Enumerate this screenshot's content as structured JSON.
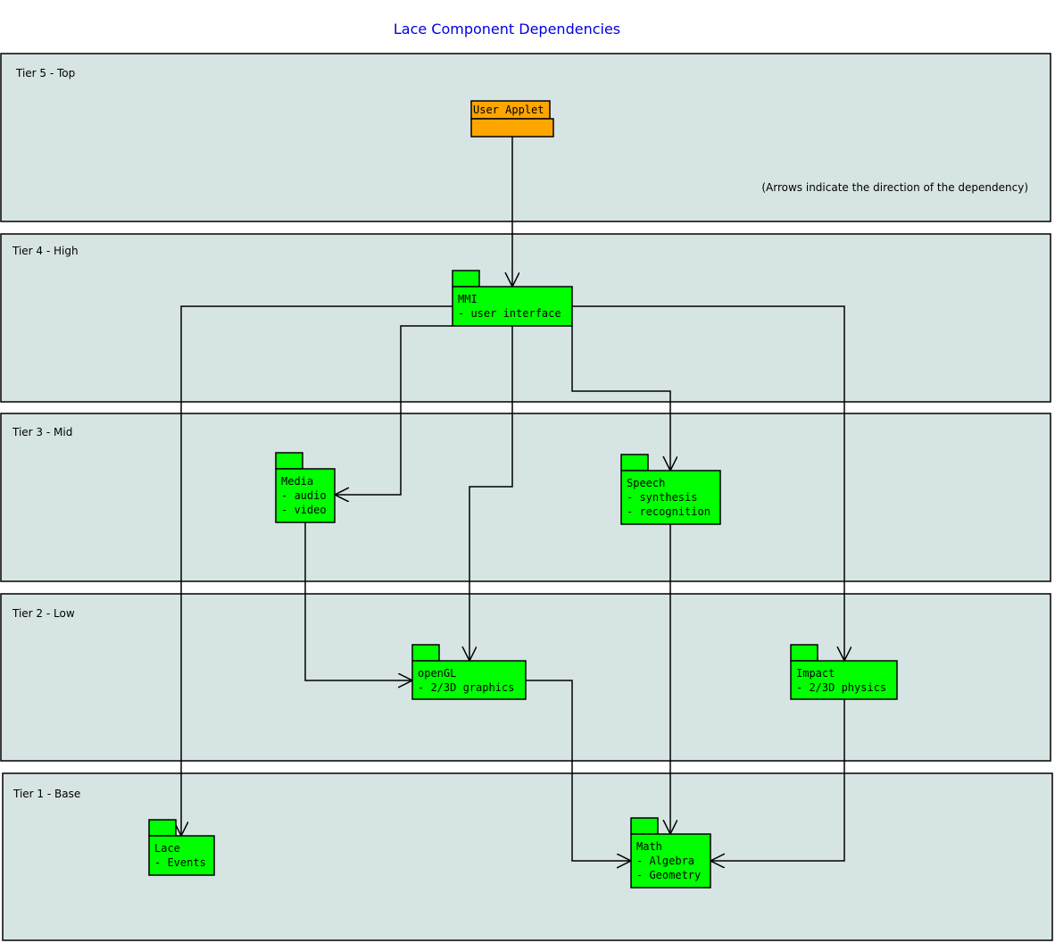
{
  "title": "Lace Component Dependencies",
  "note": "(Arrows indicate the direction of the dependency)",
  "tiers": [
    "Tier 5 - Top",
    "Tier 4 - High",
    "Tier 3 - Mid",
    "Tier 2 - Low",
    "Tier 1 - Base"
  ],
  "nodes": [
    {
      "lines": [
        "User Applet"
      ]
    },
    {
      "lines": [
        "MMI",
        "- user interface"
      ]
    },
    {
      "lines": [
        "Media",
        "- audio",
        "- video"
      ]
    },
    {
      "lines": [
        "Speech",
        "- synthesis",
        "- recognition"
      ]
    },
    {
      "lines": [
        "openGL",
        "- 2/3D graphics"
      ]
    },
    {
      "lines": [
        "Impact",
        "- 2/3D physics"
      ]
    },
    {
      "lines": [
        "Lace",
        "- Events"
      ]
    },
    {
      "lines": [
        "Math",
        "- Algebra",
        "- Geometry"
      ]
    }
  ]
}
